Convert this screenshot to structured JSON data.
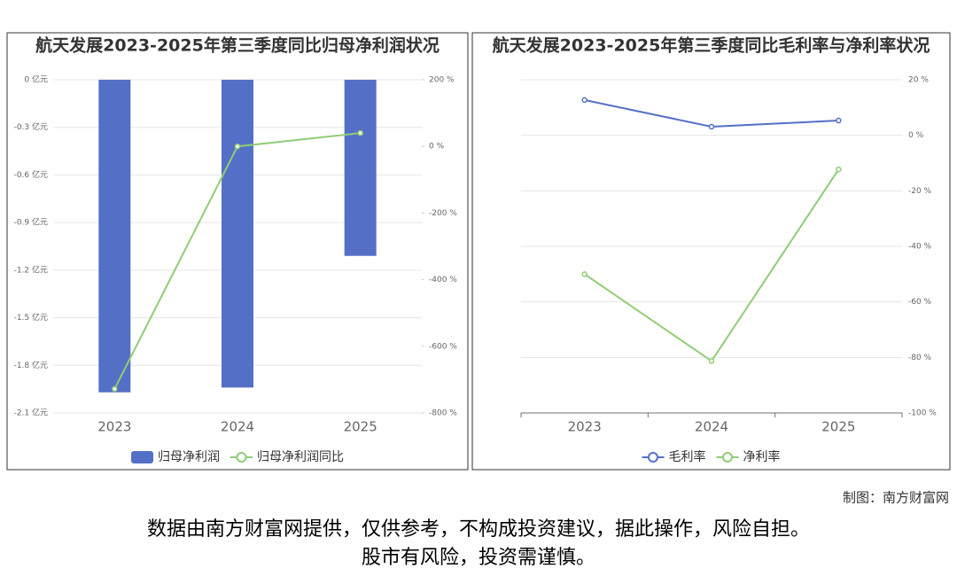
{
  "chart_data": [
    {
      "type": "bar",
      "title": "航天发展2023-2025年第三季度同比归母净利润状况",
      "categories": [
        "2023",
        "2024",
        "2025"
      ],
      "series": [
        {
          "name": "归母净利润",
          "color": "#5470c6",
          "type": "bar",
          "values": [
            -1.97,
            -1.94,
            -1.11
          ]
        },
        {
          "name": "归母净利润同比",
          "color": "#91cc75",
          "type": "line",
          "axis": "y2",
          "values": [
            -728,
            0,
            40
          ]
        }
      ],
      "ylim": [
        -2.1,
        0
      ],
      "yticks": [
        {
          "value": 0,
          "label": "0 亿元"
        },
        {
          "value": -0.3,
          "label": "-0.3 亿元"
        },
        {
          "value": -0.6,
          "label": "-0.6 亿元"
        },
        {
          "value": -0.9,
          "label": "-0.9 亿元"
        },
        {
          "value": -1.2,
          "label": "-1.2 亿元"
        },
        {
          "value": -1.5,
          "label": "-1.5 亿元"
        },
        {
          "value": -1.8,
          "label": "-1.8 亿元"
        },
        {
          "value": -2.1,
          "label": "-2.1 亿元"
        }
      ],
      "y2lim": [
        -800,
        200
      ],
      "y2ticks": [
        {
          "value": 200,
          "label": "200 %"
        },
        {
          "value": 0,
          "label": "0 %"
        },
        {
          "value": -200,
          "label": "-200 %"
        },
        {
          "value": -400,
          "label": "-400 %"
        },
        {
          "value": -600,
          "label": "-600 %"
        },
        {
          "value": -800,
          "label": "-800 %"
        }
      ],
      "grid": true
    },
    {
      "type": "line",
      "title": "航天发展2023-2025年第三季度同比毛利率与净利率状况",
      "categories": [
        "2023",
        "2024",
        "2025"
      ],
      "series": [
        {
          "name": "毛利率",
          "color": "#5470c6",
          "values": [
            12.7,
            3.1,
            5.3
          ]
        },
        {
          "name": "净利率",
          "color": "#91cc75",
          "values": [
            -50,
            -81.3,
            -12.3
          ]
        }
      ],
      "ylim": [
        -100,
        20
      ],
      "yticks": [
        {
          "value": 20,
          "label": "20 %"
        },
        {
          "value": 0,
          "label": "0 %"
        },
        {
          "value": -20,
          "label": "-20 %"
        },
        {
          "value": -40,
          "label": "-40 %"
        },
        {
          "value": -60,
          "label": "-60 %"
        },
        {
          "value": -80,
          "label": "-80 %"
        },
        {
          "value": -100,
          "label": "-100 %"
        }
      ],
      "y_axis_side": "right",
      "grid": true
    }
  ],
  "footer": {
    "credit": "制图：南方财富网",
    "disclaimer": [
      "数据由南方财富网提供，仅供参考，不构成投资建议，据此操作，风险自担。",
      "股市有风险，投资需谨慎。"
    ]
  }
}
